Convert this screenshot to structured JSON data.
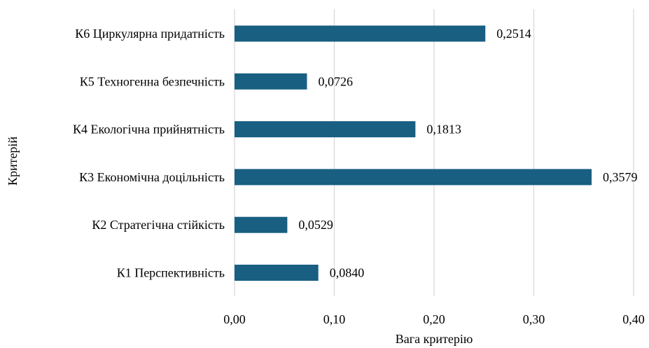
{
  "chart_data": {
    "type": "bar",
    "orientation": "horizontal",
    "categories": [
      "К6 Циркулярна придатність",
      "К5 Техногенна безпечність",
      "К4 Екологічна прийнятність",
      "К3 Економічна доцільність",
      "К2 Стратегічна стійкість",
      "К1 Перспективність"
    ],
    "values": [
      0.2514,
      0.0726,
      0.1813,
      0.3579,
      0.0529,
      0.084
    ],
    "value_labels": [
      "0,2514",
      "0,0726",
      "0,1813",
      "0,3579",
      "0,0529",
      "0,0840"
    ],
    "xticks": [
      0,
      0.1,
      0.2,
      0.3,
      0.4
    ],
    "xtick_labels": [
      "0,00",
      "0,10",
      "0,20",
      "0,30",
      "0,40"
    ],
    "xlim": [
      0,
      0.4
    ],
    "xlabel": "Вага критерію",
    "ylabel": "Критерій",
    "title": "",
    "grid": "vertical",
    "legend": "none",
    "bar_color": "#185f82",
    "grid_color": "#d9d9d9"
  }
}
